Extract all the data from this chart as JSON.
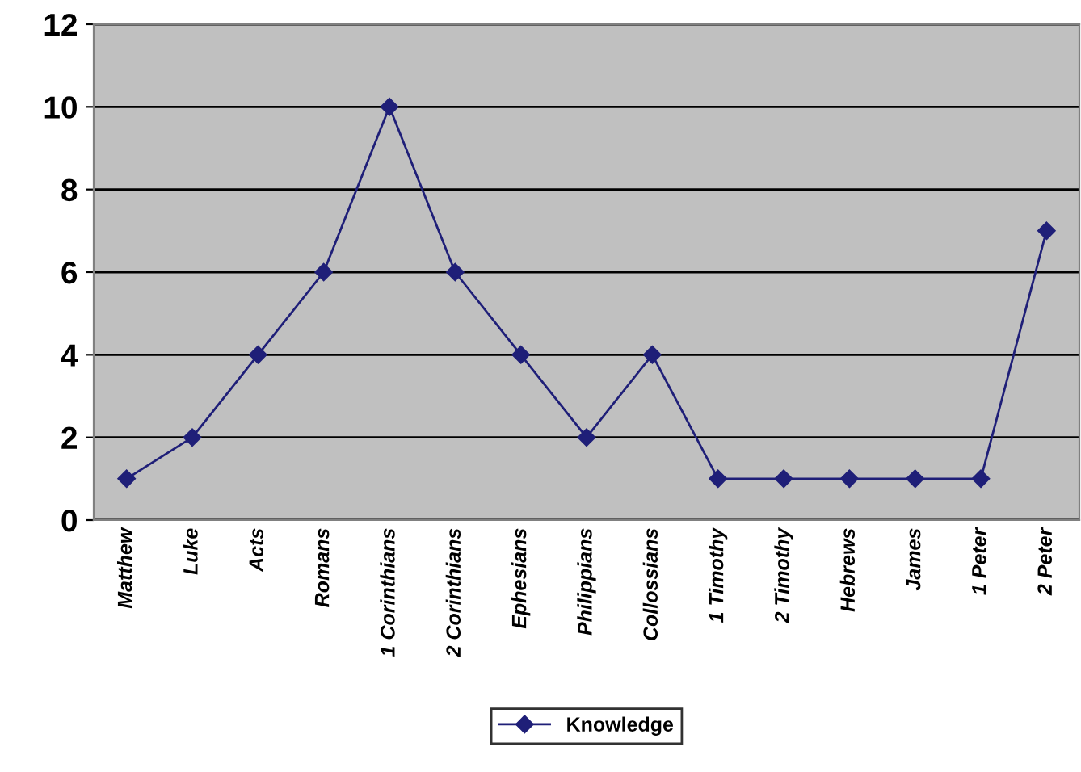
{
  "chart_data": {
    "type": "line",
    "categories": [
      "Matthew",
      "Luke",
      "Acts",
      "Romans",
      "1 Corinthians",
      "2 Corinthians",
      "Ephesians",
      "Philippians",
      "Collossians",
      "1 Timothy",
      "2 Timothy",
      "Hebrews",
      "James",
      "1 Peter",
      "2 Peter"
    ],
    "series": [
      {
        "name": "Knowledge",
        "color": "#1f1f78",
        "values": [
          1,
          2,
          4,
          6,
          10,
          6,
          4,
          2,
          4,
          1,
          1,
          1,
          1,
          1,
          7
        ]
      }
    ],
    "ylim": [
      0,
      12
    ],
    "yticks": [
      0,
      2,
      4,
      6,
      8,
      10,
      12
    ],
    "grid": "y",
    "legend": "bottom",
    "marker": "diamond",
    "line_style": "solid"
  }
}
